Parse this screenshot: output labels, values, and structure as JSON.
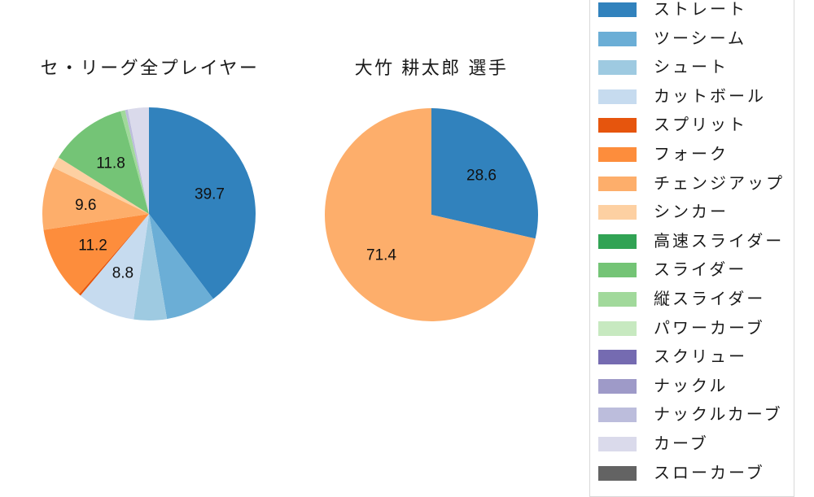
{
  "page": {
    "background": "#ffffff",
    "text_color": "#1a1a1a"
  },
  "chart_data": [
    {
      "type": "pie",
      "title": "セ・リーグ全プレイヤー",
      "unit": "percent",
      "start_angle": "top",
      "direction": "clockwise",
      "label_distance": 0.6,
      "slices": [
        {
          "name": "ストレート",
          "value": 39.7,
          "label": "39.7",
          "color": "#3182bd"
        },
        {
          "name": "ツーシーム",
          "value": 7.6,
          "label": null,
          "color": "#6baed6"
        },
        {
          "name": "シュート",
          "value": 5.0,
          "label": null,
          "color": "#9ecae1"
        },
        {
          "name": "カットボール",
          "value": 8.8,
          "label": "8.8",
          "color": "#c6dbef"
        },
        {
          "name": "スプリット",
          "value": 0.3,
          "label": null,
          "color": "#e6550d"
        },
        {
          "name": "フォーク",
          "value": 11.2,
          "label": "11.2",
          "color": "#fd8d3c"
        },
        {
          "name": "チェンジアップ",
          "value": 9.6,
          "label": "9.6",
          "color": "#fdae6b"
        },
        {
          "name": "シンカー",
          "value": 1.7,
          "label": null,
          "color": "#fdd0a2"
        },
        {
          "name": "高速スライダー",
          "value": 0,
          "label": null,
          "color": "#31a354"
        },
        {
          "name": "スライダー",
          "value": 11.8,
          "label": "11.8",
          "color": "#74c476"
        },
        {
          "name": "縦スライダー",
          "value": 0.7,
          "label": null,
          "color": "#a1d99b"
        },
        {
          "name": "パワーカーブ",
          "value": 0,
          "label": null,
          "color": "#c7e9c0"
        },
        {
          "name": "スクリュー",
          "value": 0,
          "label": null,
          "color": "#756bb1"
        },
        {
          "name": "ナックル",
          "value": 0,
          "label": null,
          "color": "#9e9ac8"
        },
        {
          "name": "ナックルカーブ",
          "value": 0.4,
          "label": null,
          "color": "#bcbddc"
        },
        {
          "name": "カーブ",
          "value": 3.2,
          "label": null,
          "color": "#dadaeb"
        },
        {
          "name": "スローカーブ",
          "value": 0,
          "label": null,
          "color": "#636363"
        }
      ]
    },
    {
      "type": "pie",
      "title": "大竹 耕太郎  選手",
      "unit": "percent",
      "start_angle": "top",
      "direction": "clockwise",
      "label_distance": 0.6,
      "slices": [
        {
          "name": "ストレート",
          "value": 28.6,
          "label": "28.6",
          "color": "#3182bd"
        },
        {
          "name": "チェンジアップ",
          "value": 71.4,
          "label": "71.4",
          "color": "#fdae6b"
        }
      ]
    }
  ],
  "legend": {
    "position": "right",
    "border_color": "#d9d9d9",
    "items": [
      {
        "label": "ストレート",
        "color": "#3182bd"
      },
      {
        "label": "ツーシーム",
        "color": "#6baed6"
      },
      {
        "label": "シュート",
        "color": "#9ecae1"
      },
      {
        "label": "カットボール",
        "color": "#c6dbef"
      },
      {
        "label": "スプリット",
        "color": "#e6550d"
      },
      {
        "label": "フォーク",
        "color": "#fd8d3c"
      },
      {
        "label": "チェンジアップ",
        "color": "#fdae6b"
      },
      {
        "label": "シンカー",
        "color": "#fdd0a2"
      },
      {
        "label": "高速スライダー",
        "color": "#31a354"
      },
      {
        "label": "スライダー",
        "color": "#74c476"
      },
      {
        "label": "縦スライダー",
        "color": "#a1d99b"
      },
      {
        "label": "パワーカーブ",
        "color": "#c7e9c0"
      },
      {
        "label": "スクリュー",
        "color": "#756bb1"
      },
      {
        "label": "ナックル",
        "color": "#9e9ac8"
      },
      {
        "label": "ナックルカーブ",
        "color": "#bcbddc"
      },
      {
        "label": "カーブ",
        "color": "#dadaeb"
      },
      {
        "label": "スローカーブ",
        "color": "#636363"
      }
    ]
  }
}
